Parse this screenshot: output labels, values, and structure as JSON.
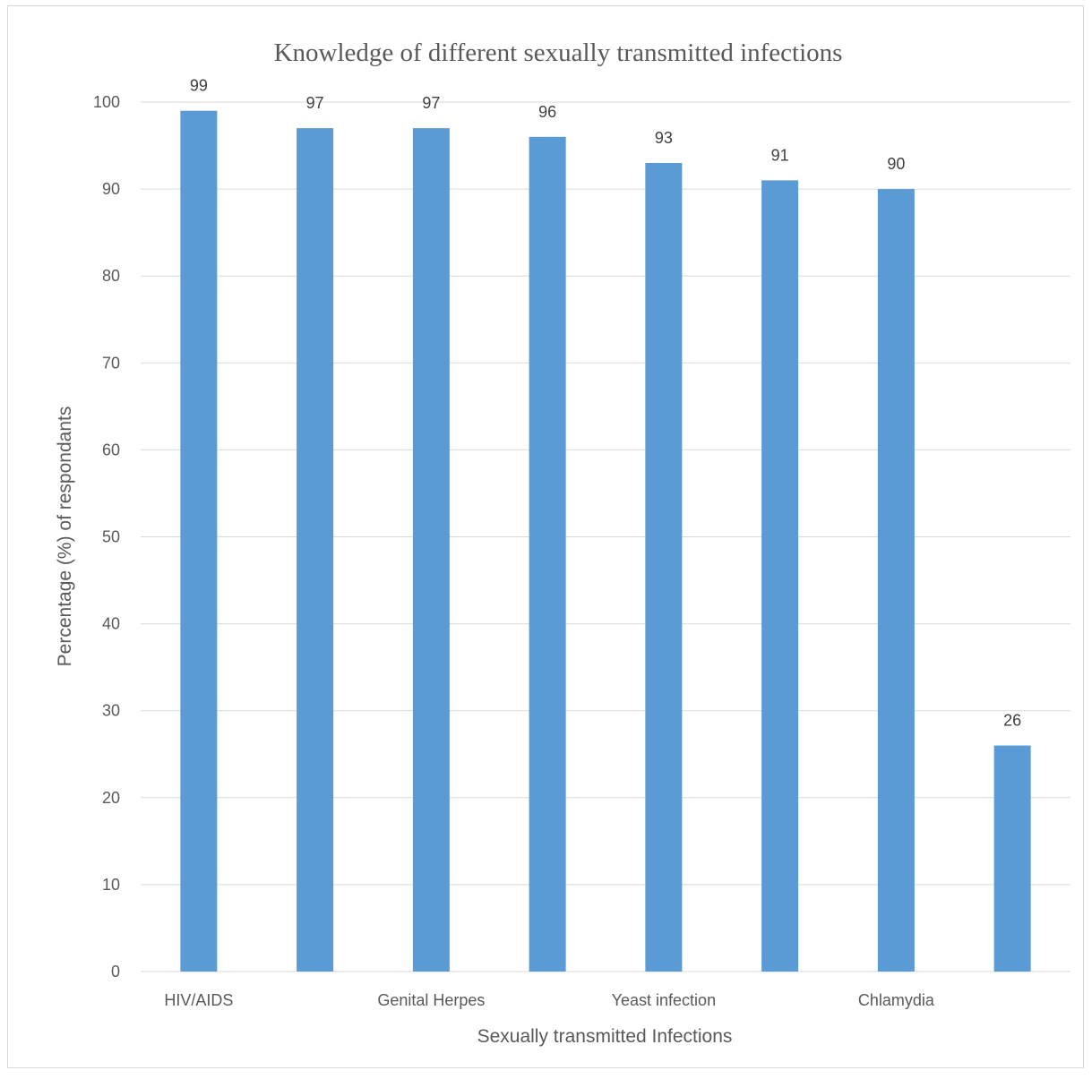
{
  "chart_data": {
    "type": "bar",
    "title": "Knowledge of different sexually transmitted infections",
    "xlabel": "Sexually transmitted Infections",
    "ylabel": "Percentage (%) of respondants",
    "categories": [
      "HIV/AIDS",
      "",
      "Genital Herpes",
      "",
      "Yeast infection",
      "",
      "Chlamydia",
      ""
    ],
    "values": [
      99,
      97,
      97,
      96,
      93,
      91,
      90,
      26
    ],
    "ylim": [
      0,
      100
    ],
    "yticks": [
      0,
      10,
      20,
      30,
      40,
      50,
      60,
      70,
      80,
      90,
      100
    ],
    "grid": true,
    "legend": "none",
    "bar_color": "#5b9bd5"
  }
}
